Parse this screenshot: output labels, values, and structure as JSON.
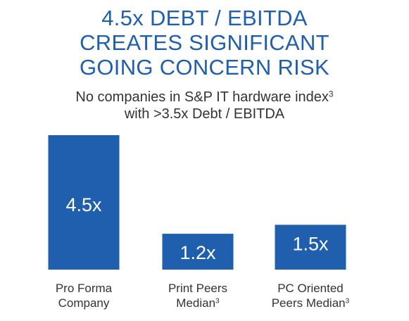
{
  "colors": {
    "title": "#1f5fad",
    "bar": "#1f5fad",
    "bar_text": "#ffffff",
    "text": "#333333"
  },
  "chart_data": {
    "type": "bar",
    "title_lines": [
      "4.5x DEBT / EBITDA",
      "CREATES SIGNIFICANT",
      "GOING CONCERN RISK"
    ],
    "subtitle_line1": "No companies in S&P IT hardware index",
    "subtitle_line1_sup": "3",
    "subtitle_line2": "with >3.5x Debt / EBITDA",
    "categories": [
      {
        "line1": "Pro Forma",
        "line2": "Company",
        "sup": ""
      },
      {
        "line1": "Print Peers",
        "line2": "Median",
        "sup": "3"
      },
      {
        "line1": "PC Oriented",
        "line2": "Peers Median",
        "sup": "3"
      }
    ],
    "values": [
      4.5,
      1.2,
      1.5
    ],
    "data_labels": [
      "4.5x",
      "1.2x",
      "1.5x"
    ],
    "ylim": [
      0,
      4.5
    ],
    "grid": false,
    "axes_visible": false
  }
}
